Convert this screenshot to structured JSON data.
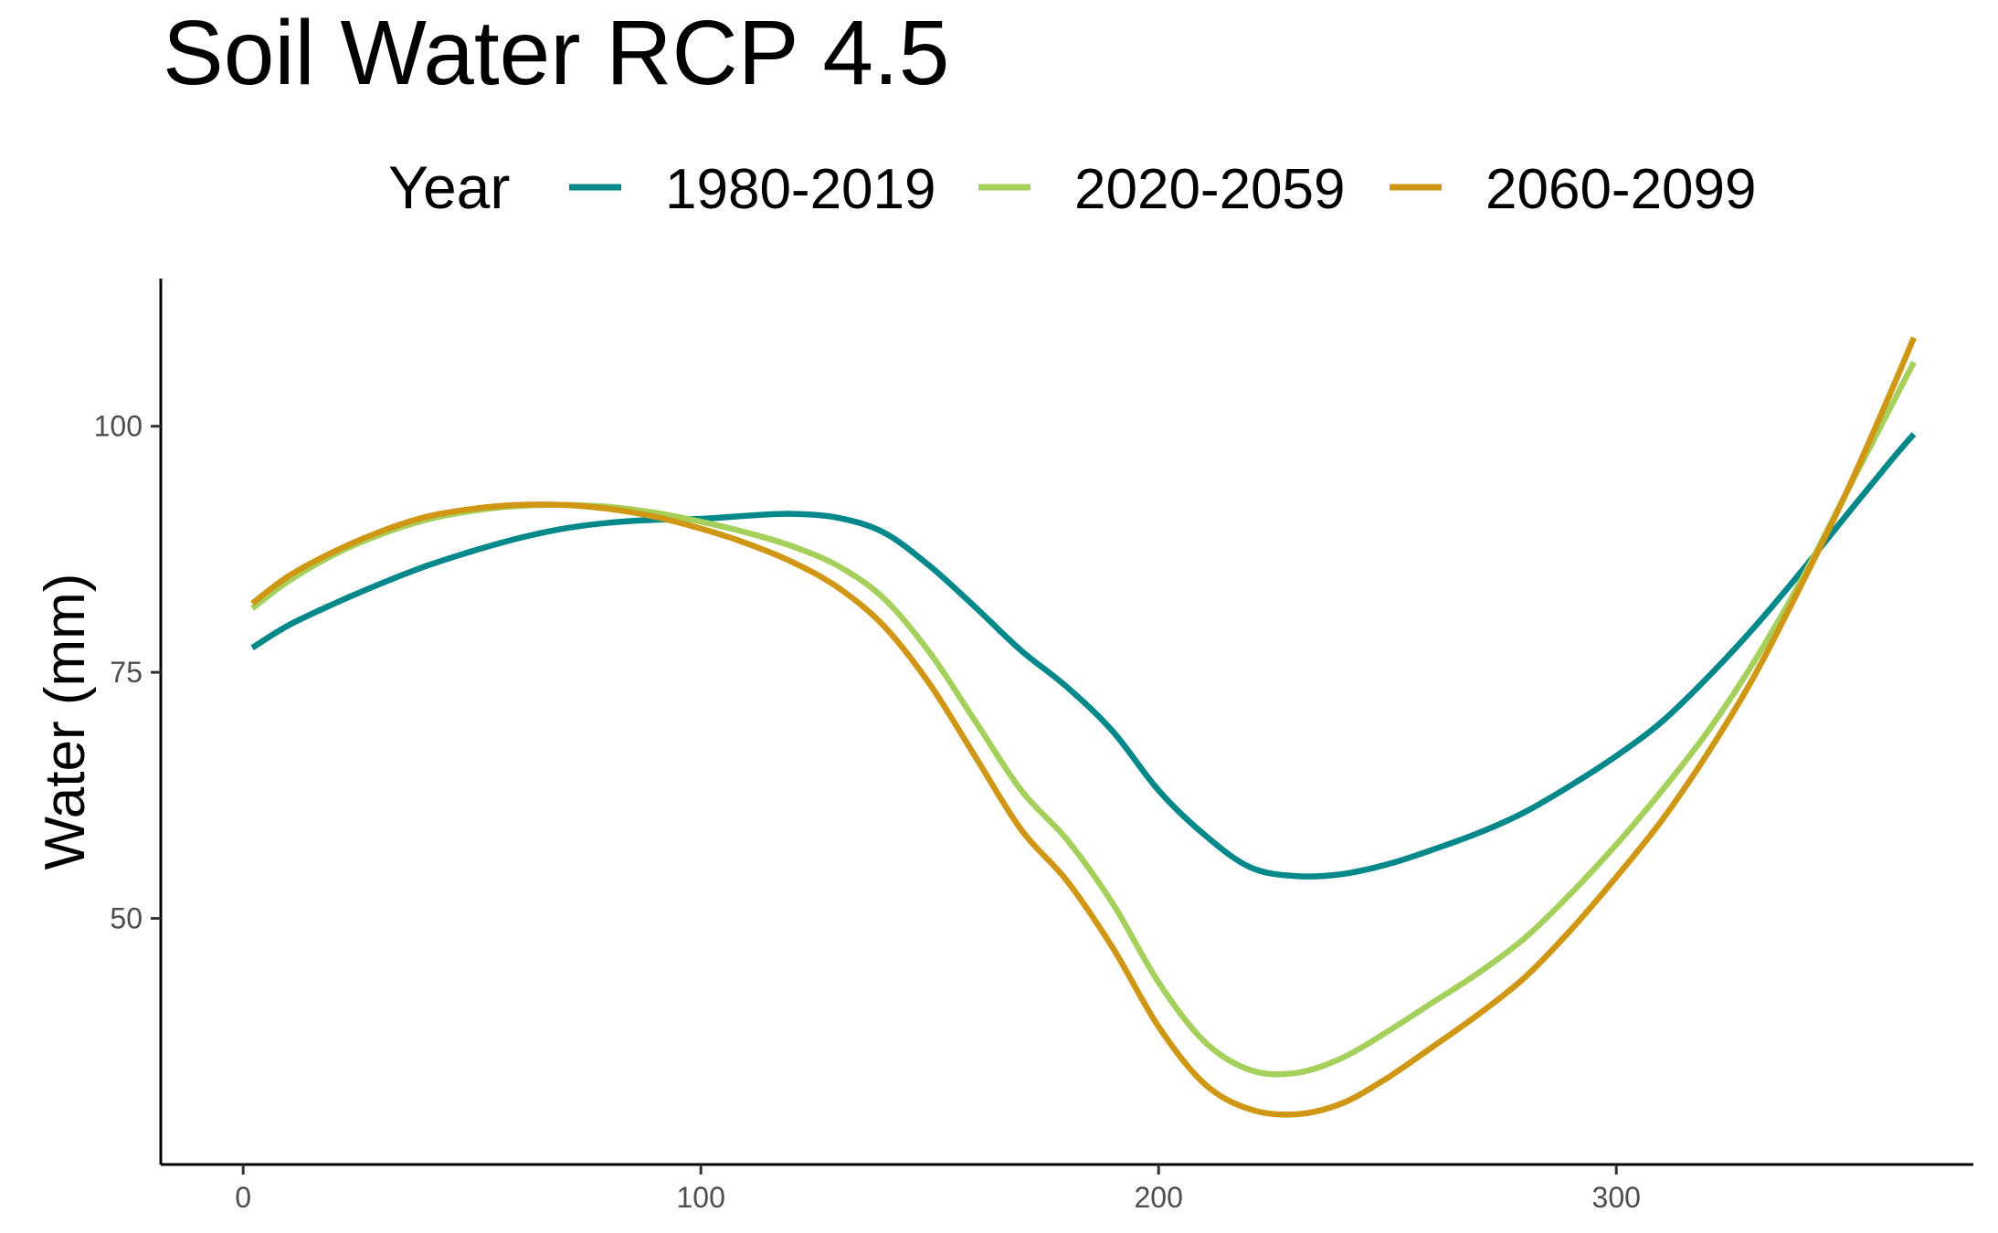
{
  "chart_data": {
    "type": "line",
    "title": "Soil Water RCP 4.5",
    "xlabel": "",
    "ylabel": "Water (mm)",
    "xlim": [
      -18,
      378
    ],
    "ylim": [
      25,
      115
    ],
    "xticks": [
      0,
      100,
      200,
      300
    ],
    "yticks": [
      50,
      75,
      100
    ],
    "grid": false,
    "legend": {
      "title": "Year",
      "position": "top"
    },
    "series": [
      {
        "name": "1980-2019",
        "color": "#00888a",
        "x": [
          2,
          10,
          20,
          30,
          40,
          50,
          60,
          70,
          80,
          90,
          100,
          110,
          120,
          130,
          140,
          150,
          160,
          170,
          180,
          190,
          200,
          210,
          220,
          230,
          240,
          250,
          260,
          270,
          280,
          290,
          300,
          310,
          320,
          330,
          340,
          350,
          360,
          365
        ],
        "y": [
          77.5,
          79.8,
          82.0,
          84.0,
          85.8,
          87.3,
          88.6,
          89.6,
          90.2,
          90.5,
          90.6,
          90.9,
          91.1,
          90.7,
          89.2,
          85.8,
          81.6,
          77.2,
          73.5,
          69.0,
          63.0,
          58.5,
          55.2,
          54.3,
          54.5,
          55.5,
          57.0,
          58.7,
          60.8,
          63.5,
          66.5,
          70.0,
          74.5,
          79.5,
          85.0,
          90.8,
          96.5,
          99.2
        ]
      },
      {
        "name": "2020-2059",
        "color": "#a6d05c",
        "x": [
          2,
          10,
          20,
          30,
          40,
          50,
          60,
          70,
          80,
          90,
          100,
          110,
          120,
          130,
          140,
          150,
          160,
          170,
          180,
          190,
          200,
          210,
          220,
          230,
          240,
          250,
          260,
          270,
          280,
          290,
          300,
          310,
          320,
          330,
          340,
          350,
          360,
          365
        ],
        "y": [
          81.5,
          84.3,
          87.0,
          89.0,
          90.5,
          91.4,
          91.9,
          92.0,
          91.8,
          91.2,
          90.3,
          89.2,
          87.8,
          85.8,
          82.5,
          77.0,
          70.0,
          63.0,
          58.0,
          51.5,
          43.5,
          37.5,
          34.6,
          34.3,
          35.8,
          38.5,
          41.5,
          44.5,
          48.0,
          52.5,
          57.5,
          63.0,
          69.0,
          76.0,
          84.0,
          93.0,
          102.0,
          106.5
        ]
      },
      {
        "name": "2060-2099",
        "color": "#cf9713",
        "x": [
          2,
          10,
          20,
          30,
          40,
          50,
          60,
          70,
          80,
          90,
          100,
          110,
          120,
          130,
          140,
          150,
          160,
          170,
          180,
          190,
          200,
          210,
          220,
          230,
          240,
          250,
          260,
          270,
          280,
          290,
          300,
          310,
          320,
          330,
          340,
          350,
          360,
          365
        ],
        "y": [
          82.0,
          84.8,
          87.3,
          89.3,
          90.8,
          91.6,
          92.0,
          92.0,
          91.6,
          90.8,
          89.6,
          88.1,
          86.2,
          83.6,
          79.7,
          73.8,
          66.4,
          59.0,
          53.8,
          47.0,
          39.0,
          33.2,
          30.6,
          30.1,
          31.2,
          33.8,
          37.0,
          40.3,
          44.0,
          48.8,
          54.2,
          60.0,
          66.8,
          74.5,
          83.5,
          93.0,
          103.5,
          109.0
        ]
      }
    ]
  }
}
